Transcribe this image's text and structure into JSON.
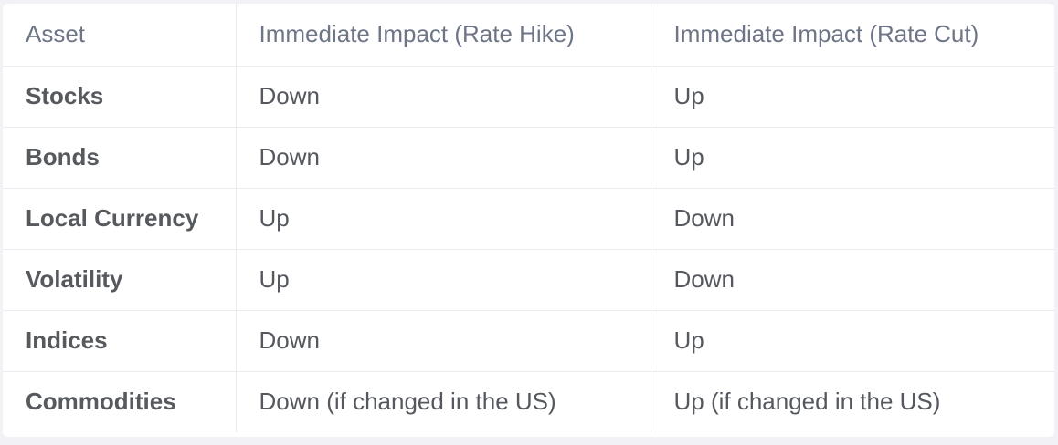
{
  "table": {
    "headers": [
      "Asset",
      "Immediate Impact (Rate Hike)",
      "Immediate Impact (Rate Cut)"
    ],
    "rows": [
      {
        "asset": "Stocks",
        "hike": "Down",
        "cut": "Up"
      },
      {
        "asset": "Bonds",
        "hike": "Down",
        "cut": "Up"
      },
      {
        "asset": "Local Currency",
        "hike": "Up",
        "cut": "Down"
      },
      {
        "asset": "Volatility",
        "hike": "Up",
        "cut": "Down"
      },
      {
        "asset": "Indices",
        "hike": "Down",
        "cut": "Up"
      },
      {
        "asset": "Commodities",
        "hike": "Down (if changed in the US)",
        "cut": "Up (if changed in the US)"
      }
    ]
  },
  "colors": {
    "background": "#f2f2f6",
    "table_background": "#ffffff",
    "header_text": "#6d7587",
    "body_text": "#55595f",
    "grid_line": "#ebebef"
  }
}
